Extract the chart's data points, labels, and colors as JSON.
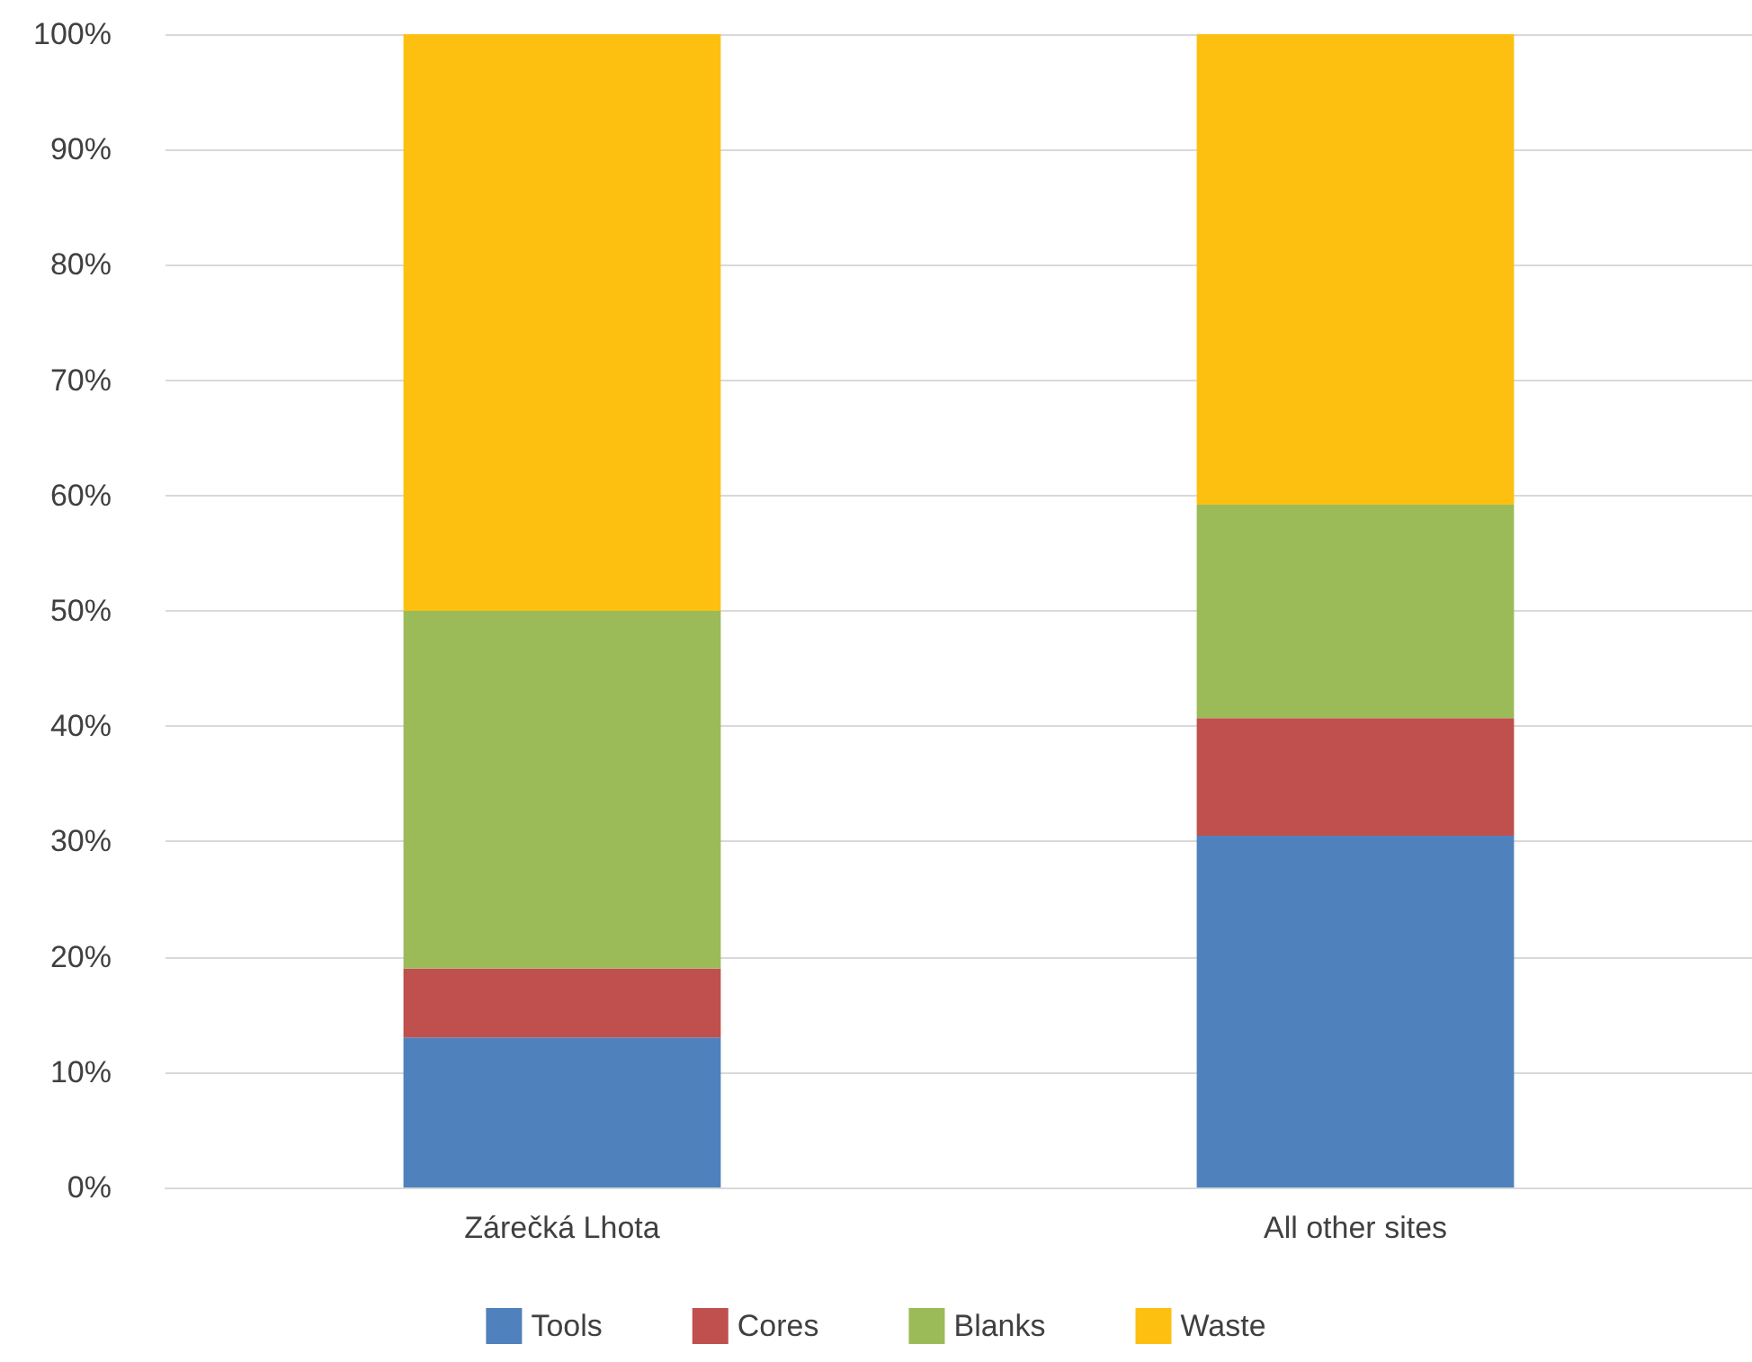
{
  "chart_data": {
    "type": "bar",
    "stacked": true,
    "categories": [
      "Zárečká Lhota",
      "All other sites"
    ],
    "series": [
      {
        "name": "Tools",
        "color": "#4f81bd",
        "values": [
          13,
          30.5
        ]
      },
      {
        "name": "Cores",
        "color": "#c0504d",
        "values": [
          6,
          10.2
        ]
      },
      {
        "name": "Blanks",
        "color": "#9bbb59",
        "values": [
          31,
          18.5
        ]
      },
      {
        "name": "Waste",
        "color": "#fdc010",
        "values": [
          50,
          40.8
        ]
      }
    ],
    "ylim": [
      0,
      100
    ],
    "yticks": [
      {
        "value": 0,
        "label": "0%"
      },
      {
        "value": 10,
        "label": "10%"
      },
      {
        "value": 20,
        "label": "20%"
      },
      {
        "value": 30,
        "label": "30%"
      },
      {
        "value": 40,
        "label": "40%"
      },
      {
        "value": 50,
        "label": "50%"
      },
      {
        "value": 60,
        "label": "60%"
      },
      {
        "value": 70,
        "label": "70%"
      },
      {
        "value": 80,
        "label": "80%"
      },
      {
        "value": 90,
        "label": "90%"
      },
      {
        "value": 100,
        "label": "100%"
      }
    ],
    "grid": "y",
    "legend": "bottom"
  }
}
